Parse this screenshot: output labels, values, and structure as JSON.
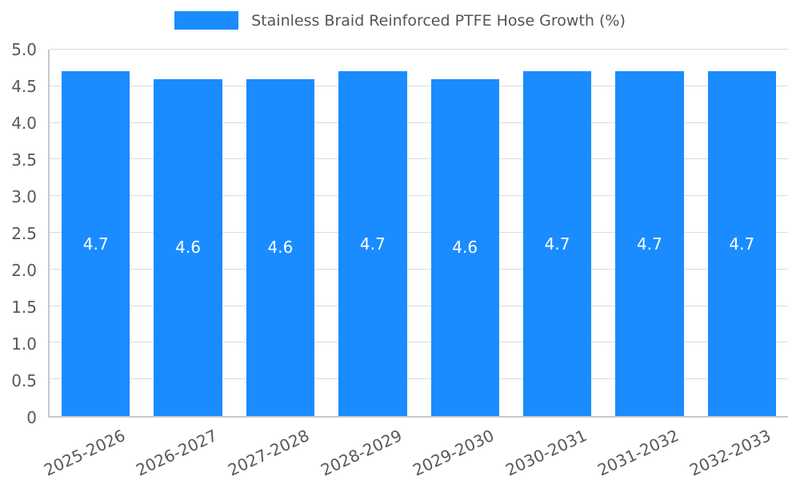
{
  "chart_data": {
    "type": "bar",
    "title": "Stainless Braid Reinforced PTFE Hose Growth (%)",
    "categories": [
      "2025-2026",
      "2026-2027",
      "2027-2028",
      "2028-2029",
      "2029-2030",
      "2030-2031",
      "2031-2032",
      "2032-2033"
    ],
    "values": [
      4.7,
      4.6,
      4.6,
      4.7,
      4.6,
      4.7,
      4.7,
      4.7
    ],
    "value_labels": [
      "4.7",
      "4.6",
      "4.6",
      "4.7",
      "4.6",
      "4.7",
      "4.7",
      "4.7"
    ],
    "ylim": [
      0,
      5.0
    ],
    "yticks": [
      "0",
      "0.5",
      "1.0",
      "1.5",
      "2.0",
      "2.5",
      "3.0",
      "3.5",
      "4.0",
      "4.5",
      "5.0"
    ],
    "xlabel": "",
    "ylabel": "",
    "grid": true,
    "legend_position": "top",
    "bar_color": "#1a8cff",
    "value_label_color": "#ffffff",
    "tick_label_color": "#595959"
  }
}
